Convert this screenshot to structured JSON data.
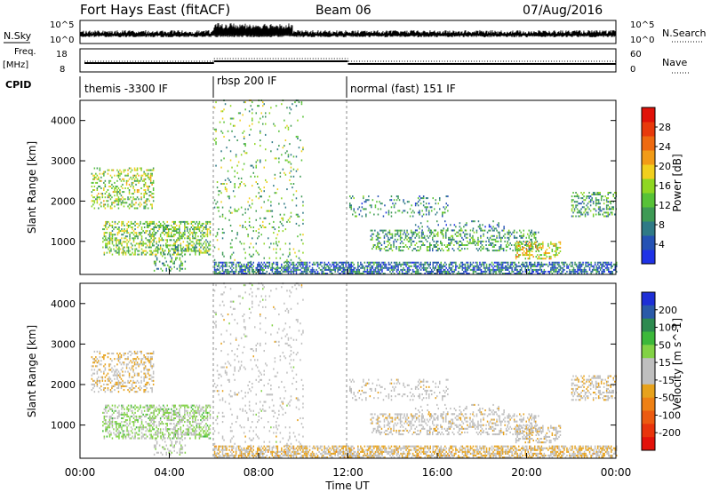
{
  "header": {
    "title": "Fort Hays East (fitACF)",
    "beam": "Beam 06",
    "date": "07/Aug/2016"
  },
  "side_labels": {
    "nsky": "N.Sky",
    "freq": "Freq.",
    "mhz": "[MHz]",
    "cpid": "CPID",
    "nsearch": "N.Search",
    "nave": "Nave"
  },
  "noise_axis": {
    "left_ticks": [
      "10^5",
      "10^0"
    ],
    "right_ticks": [
      "10^5",
      "10^0"
    ]
  },
  "freq_axis": {
    "left_ticks": [
      "18",
      "8"
    ],
    "right_ticks": [
      "60",
      "0"
    ]
  },
  "cpid_segments": [
    {
      "label": "themis -3300 IF",
      "start_hour": 0,
      "end_hour": 6
    },
    {
      "label": "rbsp 200 IF",
      "start_hour": 6,
      "end_hour": 12
    },
    {
      "label": "normal (fast) 151 IF",
      "start_hour": 12,
      "end_hour": 24
    }
  ],
  "panels": {
    "power": {
      "ylabel": "Slant Range [km]",
      "yticks": [
        "1000",
        "2000",
        "3000",
        "4000"
      ],
      "colorbar_label": "Power [dB]",
      "colorbar_ticks": [
        "4",
        "8",
        "12",
        "16",
        "20",
        "24",
        "28"
      ],
      "colors": [
        "#1f32e6",
        "#2552b4",
        "#2f7a86",
        "#3e9a55",
        "#57c237",
        "#8fd622",
        "#f1cf1e",
        "#f29b17",
        "#ee6a10",
        "#e83a0c",
        "#e01209"
      ]
    },
    "velocity": {
      "ylabel": "Slant Range [km]",
      "yticks": [
        "1000",
        "2000",
        "3000",
        "4000"
      ],
      "colorbar_label": "Velocity [m s^-1]",
      "colorbar_ticks": [
        "200",
        "100",
        "50",
        "15",
        "-15",
        "-50",
        "-100",
        "-200"
      ],
      "colors": [
        "#1e2fd6",
        "#2a5aa8",
        "#2d8a4f",
        "#3cb83a",
        "#82d245",
        "#bfbfbf",
        "#bfbfbf",
        "#e7a21c",
        "#ee8014",
        "#ec5a10",
        "#e8340c",
        "#e3120a"
      ]
    }
  },
  "xaxis": {
    "label": "Time UT",
    "ticks": [
      "00:00",
      "04:00",
      "08:00",
      "12:00",
      "16:00",
      "20:00",
      "00:00"
    ]
  },
  "chart_data": {
    "type": "heatmap",
    "title": "Fort Hays East (fitACF)",
    "xlabel": "Time UT",
    "ylabel": "Slant Range [km]",
    "xlim_hours": [
      0,
      24
    ],
    "ylim_km": [
      180,
      4500
    ],
    "power_range_db": [
      0,
      30
    ],
    "velocity_range_ms": [
      -250,
      250
    ],
    "mode_change_hours": [
      6,
      12
    ],
    "scatter_regions": [
      {
        "t_start": 0.5,
        "t_end": 3.3,
        "r_start": 1800,
        "r_end": 2800,
        "density": 0.35,
        "power": 14,
        "velocity": -30
      },
      {
        "t_start": 1.0,
        "t_end": 5.8,
        "r_start": 650,
        "r_end": 1500,
        "density": 0.45,
        "power": 13,
        "velocity": 45
      },
      {
        "t_start": 3.3,
        "t_end": 4.7,
        "r_start": 250,
        "r_end": 900,
        "density": 0.25,
        "power": 10,
        "velocity": 20
      },
      {
        "t_start": 6.0,
        "t_end": 10.0,
        "r_start": 200,
        "r_end": 4500,
        "density": 0.07,
        "power": 12,
        "velocity": 0
      },
      {
        "t_start": 6.0,
        "t_end": 24.0,
        "r_start": 180,
        "r_end": 480,
        "density": 0.6,
        "power": 6,
        "velocity": -40
      },
      {
        "t_start": 12.0,
        "t_end": 16.5,
        "r_start": 1600,
        "r_end": 2100,
        "density": 0.2,
        "power": 8,
        "velocity": -5
      },
      {
        "t_start": 13.0,
        "t_end": 20.5,
        "r_start": 750,
        "r_end": 1250,
        "density": 0.35,
        "power": 10,
        "velocity": -10
      },
      {
        "t_start": 15.0,
        "t_end": 19.0,
        "r_start": 1250,
        "r_end": 1500,
        "density": 0.15,
        "power": 7,
        "velocity": -8
      },
      {
        "t_start": 19.5,
        "t_end": 21.5,
        "r_start": 550,
        "r_end": 1000,
        "density": 0.4,
        "power": 17,
        "velocity": -20
      },
      {
        "t_start": 22.0,
        "t_end": 24.0,
        "r_start": 1600,
        "r_end": 2200,
        "density": 0.4,
        "power": 10,
        "velocity": -20
      }
    ]
  }
}
